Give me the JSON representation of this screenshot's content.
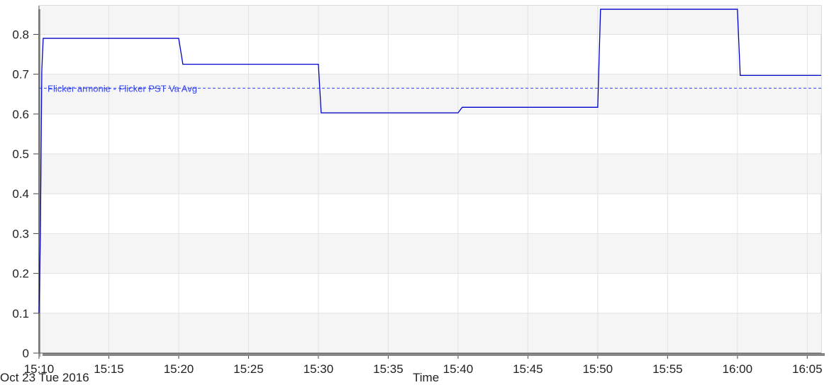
{
  "chart_data": {
    "type": "line",
    "x_label": "Time",
    "date_label": "Oct 23 Tue 2016",
    "x": [
      "15:10:00",
      "15:10:06",
      "15:10:12",
      "15:10:18",
      "15:20:00",
      "15:20:18",
      "15:30:00",
      "15:30:12",
      "15:40:00",
      "15:40:18",
      "15:50:00",
      "15:50:12",
      "16:00:00",
      "16:00:12",
      "16:06:00"
    ],
    "series": [
      {
        "name": "Flicker armonie - Flicker PST Va",
        "color": "#0000cc",
        "values": [
          0.1,
          0.3,
          0.71,
          0.79,
          0.79,
          0.725,
          0.725,
          0.603,
          0.603,
          0.617,
          0.617,
          0.863,
          0.863,
          0.697,
          0.697
        ]
      }
    ],
    "average": {
      "label": "Flicker armonie - Flicker PST Va Avg",
      "value": 0.665,
      "color": "#3344ee"
    },
    "xlim": [
      "15:10:00",
      "16:06:00"
    ],
    "xticks": [
      {
        "value": "15:10:00",
        "label": "15:10"
      },
      {
        "value": "15:15:00",
        "label": "15:15"
      },
      {
        "value": "15:20:00",
        "label": "15:20"
      },
      {
        "value": "15:25:00",
        "label": "15:25"
      },
      {
        "value": "15:30:00",
        "label": "15:30"
      },
      {
        "value": "15:35:00",
        "label": "15:35"
      },
      {
        "value": "15:40:00",
        "label": "15:40"
      },
      {
        "value": "15:45:00",
        "label": "15:45"
      },
      {
        "value": "15:50:00",
        "label": "15:50"
      },
      {
        "value": "15:55:00",
        "label": "15:55"
      },
      {
        "value": "16:00:00",
        "label": "16:00"
      },
      {
        "value": "16:05:00",
        "label": "16:05"
      }
    ],
    "ylim": [
      0,
      0.872
    ],
    "yticks": [
      0,
      0.1,
      0.2,
      0.3,
      0.4,
      0.5,
      0.6,
      0.7,
      0.8
    ],
    "grid": true
  }
}
